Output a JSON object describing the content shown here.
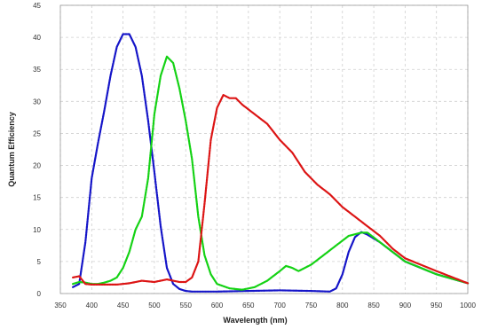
{
  "chart_data": {
    "type": "line",
    "title": "",
    "xlabel": "Wavelength (nm)",
    "ylabel": "Quantum Efficiency",
    "xlim": [
      350,
      1000
    ],
    "ylim": [
      0,
      45
    ],
    "xticks": [
      "350",
      "400",
      "450",
      "500",
      "550",
      "600",
      "650",
      "700",
      "750",
      "800",
      "850",
      "900",
      "950",
      "1000"
    ],
    "yticks": [
      "0",
      "5",
      "10",
      "15",
      "20",
      "25",
      "30",
      "35",
      "40",
      "45"
    ],
    "grid": true,
    "legend": "none",
    "series": [
      {
        "color": "#1414c8",
        "x": [
          370,
          380,
          390,
          400,
          410,
          420,
          430,
          440,
          450,
          460,
          470,
          480,
          490,
          500,
          510,
          520,
          530,
          540,
          550,
          560,
          570,
          600,
          650,
          700,
          750,
          780,
          790,
          800,
          810,
          820,
          830,
          840,
          860,
          880,
          900,
          950,
          1000
        ],
        "y": [
          1.0,
          1.5,
          8.0,
          18.0,
          23.5,
          28.5,
          34.0,
          38.5,
          40.5,
          40.5,
          38.5,
          34.0,
          27.0,
          19.0,
          10.5,
          4.0,
          1.5,
          0.7,
          0.4,
          0.3,
          0.3,
          0.3,
          0.4,
          0.5,
          0.4,
          0.3,
          0.8,
          3.0,
          6.5,
          8.8,
          9.6,
          9.2,
          8.0,
          6.5,
          5.0,
          3.0,
          1.6
        ]
      },
      {
        "color": "#14d214",
        "x": [
          370,
          380,
          390,
          400,
          410,
          420,
          430,
          440,
          450,
          460,
          470,
          480,
          490,
          500,
          510,
          520,
          530,
          540,
          550,
          560,
          570,
          580,
          590,
          600,
          620,
          640,
          660,
          680,
          700,
          710,
          720,
          730,
          750,
          770,
          790,
          810,
          830,
          840,
          860,
          880,
          900,
          950,
          1000
        ],
        "y": [
          1.5,
          1.8,
          1.7,
          1.5,
          1.5,
          1.7,
          2.0,
          2.5,
          4.0,
          6.5,
          10.0,
          12.0,
          18.0,
          28.0,
          34.0,
          37.0,
          36.0,
          32.0,
          27.0,
          21.0,
          12.0,
          6.0,
          3.0,
          1.5,
          0.8,
          0.6,
          1.0,
          2.0,
          3.5,
          4.3,
          4.0,
          3.5,
          4.5,
          6.0,
          7.5,
          9.0,
          9.5,
          9.5,
          8.0,
          6.5,
          5.0,
          3.0,
          1.6
        ]
      },
      {
        "color": "#dc1414",
        "x": [
          370,
          380,
          390,
          400,
          420,
          440,
          460,
          480,
          500,
          520,
          540,
          550,
          560,
          570,
          580,
          590,
          600,
          610,
          620,
          630,
          640,
          660,
          680,
          700,
          720,
          740,
          760,
          780,
          800,
          820,
          840,
          860,
          880,
          900,
          950,
          1000
        ],
        "y": [
          2.5,
          2.7,
          1.5,
          1.4,
          1.4,
          1.4,
          1.6,
          2.0,
          1.8,
          2.2,
          1.8,
          1.8,
          2.5,
          5.0,
          14.0,
          24.0,
          29.0,
          31.0,
          30.5,
          30.5,
          29.5,
          28.0,
          26.5,
          24.0,
          22.0,
          19.0,
          17.0,
          15.5,
          13.5,
          12.0,
          10.5,
          9.0,
          7.0,
          5.5,
          3.5,
          1.6
        ]
      }
    ]
  }
}
